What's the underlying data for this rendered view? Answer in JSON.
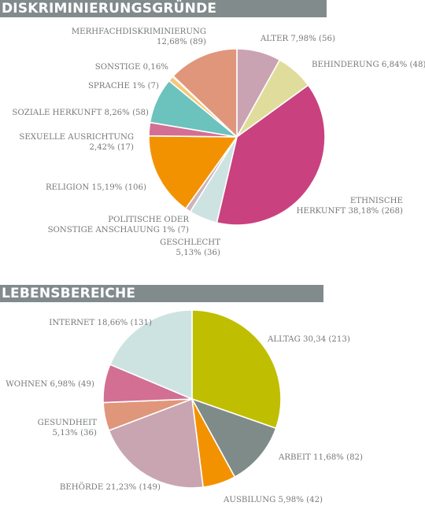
{
  "chart_data": [
    {
      "type": "pie",
      "title": "DISKRIMINIERUNGSGRÜNDE",
      "series": [
        {
          "categories": [
            "ALTER",
            "BEHINDERUNG",
            "ETHNISCHE HERKUNFT",
            "GESCHLECHT",
            "POLITISCHE ODER SONSTIGE ANSCHAUUNG",
            "RELIGION",
            "SEXUELLE AUSRICHTUNG",
            "SOZIALE HERKUNFT",
            "SPRACHE",
            "SONSTIGE",
            "MERHFACHDISKRIMINIERUNG"
          ],
          "values": [
            56,
            48,
            268,
            36,
            7,
            106,
            17,
            58,
            7,
            1,
            89
          ],
          "percents": [
            7.98,
            6.84,
            38.18,
            5.13,
            1,
            15.19,
            2.42,
            8.26,
            1,
            0.16,
            12.68
          ],
          "colors": [
            "#c9a3b1",
            "#e0dd9c",
            "#c9417f",
            "#cde3e1",
            "#cdb3bd",
            "#f39200",
            "#d26f93",
            "#6cc2bc",
            "#f7c779",
            "#a7b722",
            "#e0967a"
          ]
        }
      ],
      "labels": [
        [
          "ALTER 7,98% (56)"
        ],
        [
          "BEHINDERUNG 6,84% (48)"
        ],
        [
          "ETHNISCHE",
          "HERKUNFT 38,18% (268)"
        ],
        [
          "GESCHLECHT",
          "5,13% (36)"
        ],
        [
          "POLITISCHE ODER",
          "SONSTIGE ANSCHAUUNG 1% (7)"
        ],
        [
          "RELIGION 15,19% (106)"
        ],
        [
          "SEXUELLE AUSRICHTUNG",
          "2,42% (17)"
        ],
        [
          "SOZIALE HERKUNFT 8,26% (58)"
        ],
        [
          "SPRACHE 1% (7)"
        ],
        [
          "SONSTIGE 0,16%"
        ],
        [
          "MERHFACHDISKRIMINIERUNG",
          "12,68% (89)"
        ]
      ]
    },
    {
      "type": "pie",
      "title": "LEBENSBEREICHE",
      "series": [
        {
          "categories": [
            "ALLTAG",
            "ARBEIT",
            "AUSBILUNG",
            "BEHÖRDE",
            "GESUNDHEIT",
            "WOHNEN",
            "INTERNET"
          ],
          "values": [
            213,
            82,
            42,
            149,
            36,
            49,
            131
          ],
          "percents": [
            30.34,
            11.68,
            5.98,
            21.23,
            5.13,
            6.98,
            18.66
          ],
          "colors": [
            "#bfbe00",
            "#7f8b89",
            "#f39200",
            "#c9a4b1",
            "#e0967a",
            "#d26f93",
            "#cde3e1"
          ]
        }
      ],
      "labels": [
        [
          "ALLTAG 30,34 (213)"
        ],
        [
          "ARBEIT 11,68% (82)"
        ],
        [
          "AUSBILUNG 5,98% (42)"
        ],
        [
          "BEHÖRDE 21,23% (149)"
        ],
        [
          "GESUNDHEIT",
          "5,13% (36)"
        ],
        [
          "WOHNEN 6,98% (49)"
        ],
        [
          "INTERNET 18,66% (131)"
        ]
      ]
    }
  ]
}
